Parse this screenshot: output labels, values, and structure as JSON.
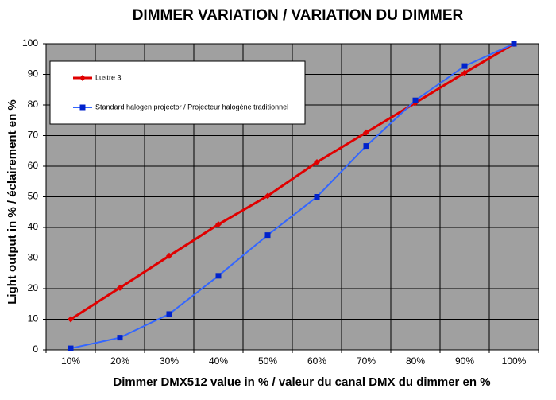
{
  "chart_data": {
    "type": "line",
    "title": "DIMMER VARIATION / VARIATION DU DIMMER",
    "x_label": "Dimmer DMX512 value in % / valeur du canal DMX du dimmer en %",
    "y_label": "Light output in % / éclairement en %",
    "categories": [
      "10%",
      "20%",
      "30%",
      "40%",
      "50%",
      "60%",
      "70%",
      "80%",
      "90%",
      "100%"
    ],
    "series": [
      {
        "name": "Lustre 3",
        "color": "#e00000",
        "marker": "diamond",
        "values": [
          10,
          20.3,
          30.7,
          41,
          50.3,
          61.3,
          71,
          80.7,
          90.5,
          100
        ]
      },
      {
        "name": "Standard halogen projector / Projecteur halogène traditionnel",
        "color": "#3366ff",
        "marker": "square",
        "values": [
          0.5,
          4,
          11.7,
          24.2,
          37.5,
          50,
          66.6,
          81.5,
          92.7,
          100
        ]
      }
    ],
    "ylim": [
      0,
      100
    ],
    "yticks": [
      0,
      10,
      20,
      30,
      40,
      50,
      60,
      70,
      80,
      90,
      100
    ],
    "grid": true,
    "legend": "upper left"
  }
}
